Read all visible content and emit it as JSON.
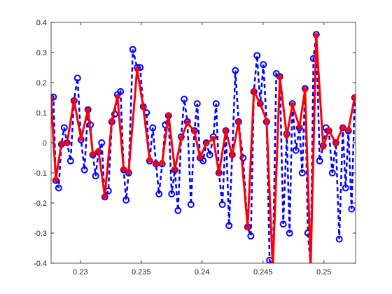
{
  "chart_data": {
    "type": "line",
    "xlim": [
      0.2276,
      0.2526
    ],
    "ylim": [
      -0.4,
      0.4
    ],
    "xticks": [
      0.23,
      0.235,
      0.24,
      0.245,
      0.25
    ],
    "yticks": [
      -0.4,
      -0.3,
      -0.2,
      -0.1,
      0,
      0.1,
      0.2,
      0.3,
      0.4
    ],
    "grid": false,
    "series": [
      {
        "style": "dashed-circles",
        "color": "#0000ff",
        "x": [
          0.22759,
          0.22779,
          0.22799,
          0.22822,
          0.22845,
          0.22868,
          0.22891,
          0.2292,
          0.22948,
          0.22977,
          0.23006,
          0.23034,
          0.23063,
          0.23083,
          0.23103,
          0.23126,
          0.23149,
          0.23175,
          0.23201,
          0.2323,
          0.23259,
          0.23282,
          0.23305,
          0.2333,
          0.23356,
          0.23376,
          0.23397,
          0.23431,
          0.23466,
          0.23491,
          0.23517,
          0.23543,
          0.23569,
          0.23595,
          0.23621,
          0.23646,
          0.23672,
          0.23698,
          0.23724,
          0.2375,
          0.23776,
          0.23802,
          0.23828,
          0.23853,
          0.23879,
          0.23908,
          0.23937,
          0.2396,
          0.23983,
          0.24008,
          0.24034,
          0.24063,
          0.24092,
          0.24115,
          0.24138,
          0.24166,
          0.24195,
          0.24221,
          0.24247,
          0.24273,
          0.24299,
          0.24336,
          0.24374,
          0.244,
          0.24425,
          0.24451,
          0.24477,
          0.24503,
          0.24529,
          0.24554,
          0.2458,
          0.24609,
          0.24638,
          0.24666,
          0.24695,
          0.24718,
          0.24741,
          0.2477,
          0.24799,
          0.24822,
          0.24845,
          0.24868,
          0.24891,
          0.24914,
          0.24937,
          0.24965,
          0.24994,
          0.25017,
          0.2504,
          0.25069,
          0.25098,
          0.25126,
          0.25155,
          0.25178,
          0.25201,
          0.25227,
          0.25253
        ],
        "values": [
          0.149,
          0.152,
          -0.125,
          -0.15,
          -0.005,
          0.05,
          0.0,
          -0.06,
          0.14,
          0.215,
          0.01,
          -0.09,
          0.11,
          0.06,
          -0.04,
          -0.11,
          -0.03,
          0.0,
          -0.18,
          -0.16,
          0.07,
          0.095,
          0.16,
          0.17,
          -0.09,
          -0.19,
          -0.1,
          0.31,
          0.25,
          0.25,
          0.12,
          0.1,
          -0.06,
          0.05,
          -0.07,
          -0.17,
          -0.07,
          0.06,
          0.09,
          -0.17,
          -0.09,
          -0.225,
          0.02,
          0.145,
          0.07,
          -0.205,
          0.04,
          0.13,
          -0.05,
          -0.06,
          0.0,
          -0.04,
          0.02,
          0.13,
          -0.1,
          -0.205,
          0.04,
          -0.275,
          -0.04,
          0.24,
          0.07,
          -0.05,
          -0.28,
          -0.31,
          0.17,
          0.29,
          0.13,
          0.26,
          0.07,
          -0.39,
          -0.42,
          0.23,
          0.22,
          -0.27,
          0.03,
          -0.3,
          0.13,
          -0.025,
          0.05,
          -0.1,
          0.18,
          -0.3,
          -0.41,
          0.28,
          0.36,
          -0.06,
          -0.01,
          0.05,
          0.04,
          -0.1,
          0.0,
          -0.32,
          0.05,
          -0.15,
          0.04,
          -0.22,
          0.15
        ]
      },
      {
        "style": "solid-dots",
        "color": "#ff0000",
        "x": [
          0.22759,
          0.22799,
          0.22845,
          0.22891,
          0.22948,
          0.23006,
          0.23063,
          0.23103,
          0.23149,
          0.23201,
          0.23259,
          0.23305,
          0.23356,
          0.23397,
          0.23466,
          0.23517,
          0.23569,
          0.23621,
          0.23672,
          0.23724,
          0.23776,
          0.23828,
          0.23879,
          0.23937,
          0.23983,
          0.24034,
          0.24092,
          0.24138,
          0.24195,
          0.24247,
          0.24299,
          0.24374,
          0.24425,
          0.24477,
          0.24529,
          0.2458,
          0.24638,
          0.24695,
          0.24741,
          0.24799,
          0.24845,
          0.24891,
          0.24937,
          0.24994,
          0.2504,
          0.25098,
          0.25155,
          0.25201,
          0.25253
        ],
        "values": [
          0.149,
          -0.121,
          -0.002,
          -0.002,
          0.142,
          0.014,
          0.109,
          -0.037,
          -0.026,
          -0.177,
          0.074,
          0.153,
          -0.088,
          -0.095,
          0.244,
          0.119,
          -0.056,
          -0.07,
          -0.065,
          0.093,
          -0.088,
          0.014,
          0.067,
          0.037,
          -0.049,
          -0.002,
          0.014,
          -0.102,
          0.04,
          -0.042,
          0.07,
          -0.281,
          0.172,
          0.13,
          0.074,
          -0.42,
          0.219,
          0.023,
          0.126,
          0.053,
          0.177,
          -0.41,
          0.356,
          -0.014,
          0.042,
          -0.002,
          0.051,
          0.044,
          0.153
        ]
      }
    ]
  }
}
